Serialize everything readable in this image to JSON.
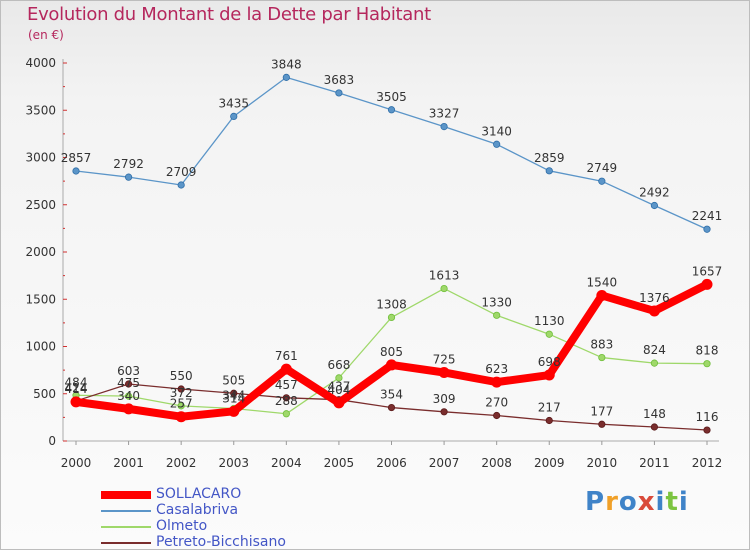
{
  "title": "Evolution du Montant de la Dette par Habitant",
  "subtitle": "(en €)",
  "logo": {
    "text": "Proxiti",
    "letter_colors": [
      "#3f83c8",
      "#f0a028",
      "#3f83c8",
      "#d94a3a",
      "#3f83c8",
      "#7cc440",
      "#3f83c8"
    ]
  },
  "chart_data": {
    "type": "line",
    "x": [
      "2000",
      "2001",
      "2002",
      "2003",
      "2004",
      "2005",
      "2006",
      "2007",
      "2008",
      "2009",
      "2010",
      "2011",
      "2012"
    ],
    "ylim": [
      0,
      4000
    ],
    "yticks": [
      0,
      500,
      1000,
      1500,
      2000,
      2500,
      3000,
      3500,
      4000
    ],
    "grid": false,
    "legend_position": "bottom-left",
    "series": [
      {
        "name": "SOLLACARO",
        "color": "#ff0000",
        "values": [
          414,
          340,
          257,
          314,
          761,
          404,
          805,
          725,
          623,
          698,
          1540,
          1376,
          1657
        ],
        "labels": [
          "414",
          "340",
          "257",
          "314",
          "761",
          "404",
          "805",
          "725",
          "623",
          "698",
          "1540",
          "1376",
          "1657"
        ]
      },
      {
        "name": "Casalabriva",
        "color": "#5b95c8",
        "values": [
          2857,
          2792,
          2709,
          3435,
          3848,
          3683,
          3505,
          3327,
          3140,
          2859,
          2749,
          2492,
          2241
        ],
        "labels": [
          "2857",
          "2792",
          "2709",
          "3435",
          "3848",
          "3683",
          "3505",
          "3327",
          "3140",
          "2859",
          "2749",
          "2492",
          "2241"
        ]
      },
      {
        "name": "Olmeto",
        "color": "#9fd86a",
        "values": [
          484,
          475,
          372,
          344,
          288,
          668,
          1308,
          1613,
          1330,
          1130,
          883,
          824,
          818
        ],
        "labels": [
          "484",
          "475",
          "372",
          "344",
          "288",
          "668",
          "1308",
          "1613",
          "1330",
          "1130",
          "883",
          "824",
          "818"
        ]
      },
      {
        "name": "Petreto-Bicchisano",
        "color": "#7a2d2d",
        "values": [
          424,
          603,
          550,
          505,
          457,
          437,
          354,
          309,
          270,
          217,
          177,
          148,
          116
        ],
        "labels": [
          "424",
          "603",
          "550",
          "505",
          "457",
          "437",
          "354",
          "309",
          "270",
          "217",
          "177",
          "148",
          "116"
        ]
      }
    ]
  }
}
